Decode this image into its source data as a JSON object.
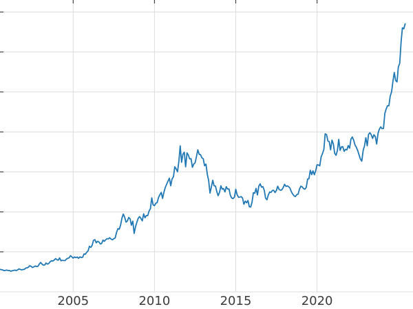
{
  "figure": {
    "background_color": "#ffffff"
  },
  "chart_data": {
    "type": "line",
    "title": "",
    "xlabel": "",
    "ylabel": "",
    "legend": "none",
    "grid": true,
    "x_unit": "year",
    "x_start": 2000.5,
    "x_step": 0.0833333,
    "xlim": [
      2000.5,
      2025.9
    ],
    "ylim": [
      0,
      3650
    ],
    "x_ticks": [
      {
        "value": 2005,
        "label": "2005"
      },
      {
        "value": 2010,
        "label": "2010"
      },
      {
        "value": 2015,
        "label": "2015"
      },
      {
        "value": 2020,
        "label": "2020"
      }
    ],
    "y_gridlines": [
      500,
      1000,
      1500,
      2000,
      2500,
      3000,
      3500
    ],
    "line_color": "#1f77b4",
    "grid_color": "#dcdcdc",
    "tick_label_color": "#3a3a3a",
    "tick_mark_color": "#333333",
    "line_width": 1.8,
    "tick_label_font_size": 18,
    "values": [
      281,
      277,
      274,
      265,
      269,
      272,
      266,
      267,
      258,
      264,
      267,
      271,
      266,
      274,
      287,
      280,
      275,
      279,
      282,
      297,
      301,
      308,
      327,
      319,
      304,
      313,
      323,
      317,
      319,
      348,
      368,
      347,
      334,
      336,
      361,
      346,
      355,
      376,
      389,
      385,
      398,
      416,
      402,
      396,
      424,
      388,
      394,
      392,
      391,
      410,
      419,
      425,
      453,
      438,
      422,
      436,
      428,
      435,
      419,
      437,
      429,
      433,
      473,
      471,
      495,
      513,
      569,
      556,
      582,
      644,
      653,
      613,
      632,
      624,
      599,
      604,
      647,
      632,
      651,
      665,
      662,
      677,
      660,
      651,
      666,
      673,
      743,
      790,
      783,
      834,
      924,
      972,
      934,
      872,
      886,
      930,
      914,
      833,
      885,
      731,
      815,
      870,
      920,
      941,
      917,
      888,
      976,
      927,
      954,
      953,
      1009,
      1040,
      1176,
      1088,
      1078,
      1108,
      1116,
      1180,
      1215,
      1244,
      1169,
      1248,
      1307,
      1346,
      1384,
      1421,
      1327,
      1412,
      1439,
      1564,
      1537,
      1502,
      1628,
      1826,
      1620,
      1722,
      1746,
      1564,
      1738,
      1711,
      1662,
      1664,
      1558,
      1598,
      1615,
      1692,
      1776,
      1719,
      1715,
      1676,
      1664,
      1577,
      1597,
      1469,
      1394,
      1235,
      1313,
      1396,
      1327,
      1323,
      1253,
      1202,
      1244,
      1326,
      1284,
      1292,
      1250,
      1315,
      1285,
      1287,
      1208,
      1173,
      1167,
      1184,
      1283,
      1214,
      1183,
      1184,
      1191,
      1172,
      1095,
      1135,
      1114,
      1142,
      1065,
      1061,
      1118,
      1239,
      1233,
      1293,
      1212,
      1322,
      1351,
      1309,
      1316,
      1272,
      1173,
      1152,
      1211,
      1249,
      1244,
      1268,
      1269,
      1242,
      1269,
      1321,
      1280,
      1271,
      1275,
      1303,
      1345,
      1318,
      1325,
      1315,
      1298,
      1253,
      1224,
      1201,
      1192,
      1215,
      1222,
      1282,
      1321,
      1313,
      1292,
      1283,
      1306,
      1410,
      1414,
      1520,
      1466,
      1513,
      1464,
      1517,
      1589,
      1586,
      1577,
      1687,
      1730,
      1781,
      1976,
      1967,
      1886,
      1879,
      1777,
      1898,
      1848,
      1734,
      1708,
      1768,
      1907,
      1770,
      1814,
      1815,
      1757,
      1783,
      1775,
      1829,
      1797,
      1909,
      1937,
      1897,
      1837,
      1807,
      1766,
      1711,
      1661,
      1634,
      1769,
      1824,
      1928,
      1827,
      1969,
      1990,
      1963,
      1919,
      1965,
      1940,
      1849,
      1983,
      2036,
      2063,
      2040,
      2044,
      2230,
      2286,
      2327,
      2327,
      2448,
      2503,
      2635,
      2744,
      2643,
      2625,
      2812,
      2858,
      3124,
      3302,
      3289,
      3352
    ]
  }
}
